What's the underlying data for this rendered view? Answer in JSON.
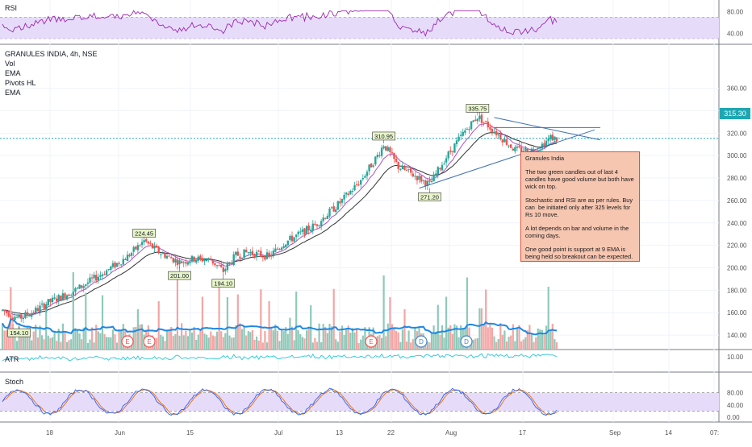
{
  "rsi": {
    "title": "RSI",
    "ticks": [
      "80.00",
      "40.00"
    ]
  },
  "main": {
    "title": "GRANULES INDIA, 4h, NSE",
    "indicators": [
      "Vol",
      "EMA",
      "Pivots HL",
      "EMA"
    ],
    "price_ticks": [
      "360.00",
      "340.00",
      "320.00",
      "300.00",
      "280.00",
      "260.00",
      "240.00",
      "220.00",
      "200.00",
      "180.00",
      "160.00",
      "140.00"
    ],
    "last_price": "315.30",
    "pivot_labels": [
      "154.10",
      "224.45",
      "201.00",
      "194.10",
      "310.95",
      "271.20",
      "335.75"
    ],
    "events": [
      "E",
      "E",
      "E",
      "D",
      "D"
    ],
    "note": {
      "title": "Granules India",
      "p1": "The two green candles out of last 4 candles have good volume but both have wick on top.",
      "p2": "Stochastic and RSI are as per rules. Buy can  be initiated only after 325 levels for Rs 10 move.",
      "p3": "A lot depends on bar and volume in the coming days.",
      "p4": "One good point is support at 9 EMA is being held so breakout can be expected."
    }
  },
  "atr": {
    "title": "ATR",
    "ticks": [
      "10.00"
    ]
  },
  "stoch": {
    "title": "Stoch",
    "ticks": [
      "80.00",
      "40.00",
      "0.00"
    ]
  },
  "x_axis": {
    "labels": [
      "18",
      "Jun",
      "15",
      "Jul",
      "13",
      "22",
      "Aug",
      "17",
      "Sep",
      "14",
      "07:"
    ]
  },
  "colors": {
    "up": "#26a69a",
    "down": "#ef5350",
    "band": "#e6dcfa",
    "rsi": "#9c27b0",
    "atr": "#26c6da",
    "stoch_k": "#2962ff",
    "stoch_d": "#ef6c00",
    "vol_ma": "#1e88e5",
    "pivot_box": "#e8f5c8",
    "trend": "#3f6fb5"
  },
  "chart_data": {
    "type": "candlestick",
    "title": "GRANULES INDIA, 4h, NSE",
    "ylim": [
      130,
      370
    ],
    "key_prices": {
      "low_may": 154.1,
      "jun_high": 224.45,
      "jun_low": 201.0,
      "jul_low": 194.1,
      "jul_high": 310.95,
      "aug_low": 271.2,
      "aug_high": 335.75,
      "last": 315.3
    },
    "waypoints": [
      [
        0,
        162
      ],
      [
        8,
        155
      ],
      [
        15,
        161
      ],
      [
        22,
        169
      ],
      [
        35,
        180
      ],
      [
        48,
        195
      ],
      [
        60,
        210
      ],
      [
        68,
        224
      ],
      [
        75,
        214
      ],
      [
        85,
        205
      ],
      [
        92,
        208
      ],
      [
        100,
        207
      ],
      [
        106,
        197
      ],
      [
        112,
        211
      ],
      [
        118,
        214
      ],
      [
        128,
        210
      ],
      [
        135,
        222
      ],
      [
        150,
        238
      ],
      [
        162,
        258
      ],
      [
        172,
        278
      ],
      [
        180,
        300
      ],
      [
        183,
        310
      ],
      [
        190,
        290
      ],
      [
        198,
        282
      ],
      [
        205,
        274
      ],
      [
        212,
        296
      ],
      [
        222,
        322
      ],
      [
        228,
        335
      ],
      [
        236,
        322
      ],
      [
        246,
        305
      ],
      [
        256,
        305
      ],
      [
        263,
        316
      ],
      [
        266,
        315
      ]
    ],
    "candle_count": 267,
    "annotations": [
      "triangle breakout pattern 300-325",
      "resistance line 325"
    ]
  }
}
